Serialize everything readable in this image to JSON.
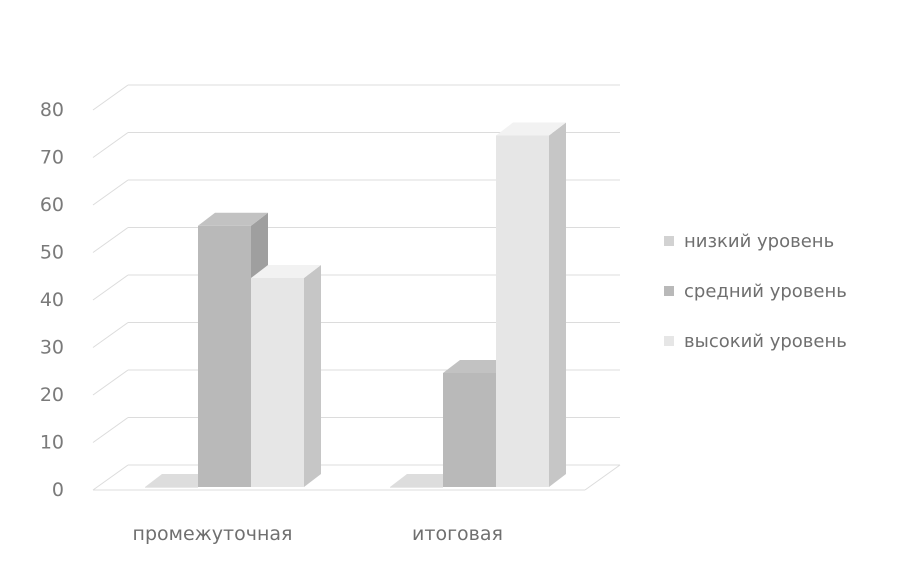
{
  "chart_data": {
    "type": "bar",
    "categories": [
      "промежуточная",
      "итоговая"
    ],
    "series": [
      {
        "name": "низкий уровень",
        "values": [
          0,
          0
        ],
        "color": "#d2d2d2"
      },
      {
        "name": "средний уровень",
        "values": [
          55,
          24
        ],
        "color": "#b9b9b9"
      },
      {
        "name": "высокий уровень",
        "values": [
          44,
          74
        ],
        "color": "#e6e6e6"
      }
    ],
    "yticks": [
      "0",
      "10",
      "20",
      "30",
      "40",
      "50",
      "60",
      "70",
      "80"
    ],
    "ylim": [
      0,
      80
    ],
    "grid": true,
    "legend_position": "right",
    "title": "",
    "xlabel": "",
    "ylabel": ""
  }
}
